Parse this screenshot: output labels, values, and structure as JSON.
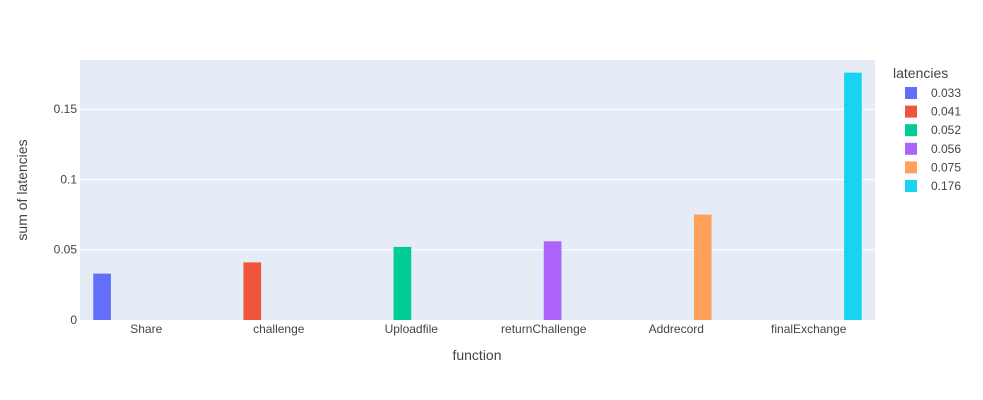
{
  "chart_data": {
    "type": "bar",
    "categories": [
      "Share",
      "challenge",
      "Uploadfile",
      "returnChallenge",
      "Addrecord",
      "finalExchange"
    ],
    "series": [
      {
        "name": "0.033",
        "values": [
          0.033,
          null,
          null,
          null,
          null,
          null
        ],
        "color": "#636efa"
      },
      {
        "name": "0.041",
        "values": [
          null,
          0.041,
          null,
          null,
          null,
          null
        ],
        "color": "#EF553B"
      },
      {
        "name": "0.052",
        "values": [
          null,
          null,
          0.052,
          null,
          null,
          null
        ],
        "color": "#00cc96"
      },
      {
        "name": "0.056",
        "values": [
          null,
          null,
          null,
          0.056,
          null,
          null
        ],
        "color": "#ab63fa"
      },
      {
        "name": "0.075",
        "values": [
          null,
          null,
          null,
          null,
          0.075,
          null
        ],
        "color": "#FFA15A"
      },
      {
        "name": "0.176",
        "values": [
          null,
          null,
          null,
          null,
          null,
          0.176
        ],
        "color": "#19d3f3"
      }
    ],
    "xlabel": "function",
    "ylabel": "sum of latencies",
    "ylim": [
      0,
      0.185
    ],
    "yticks": [
      0,
      0.05,
      0.1,
      0.15
    ],
    "ytick_labels": [
      "0",
      "0.05",
      "0.1",
      "0.15"
    ],
    "legend_title": "latencies",
    "legend_position": "right",
    "grid": true,
    "plot_background": "#e5ecf6"
  }
}
